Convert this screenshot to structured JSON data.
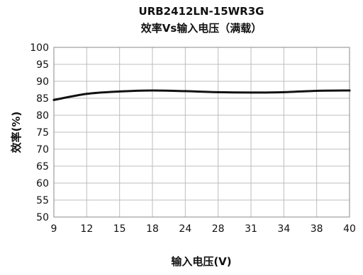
{
  "chart_data": {
    "type": "line",
    "title": "URB2412LN-15WR3G",
    "subtitle": "效率Vs输入电压（满载）",
    "xlabel": "输入电压(V)",
    "ylabel": "效率(%)",
    "categories": [
      "9",
      "12",
      "15",
      "18",
      "24",
      "28",
      "31",
      "34",
      "38",
      "40"
    ],
    "y_ticks": [
      50,
      55,
      60,
      65,
      70,
      75,
      80,
      85,
      90,
      95,
      100
    ],
    "ylim": [
      50,
      100
    ],
    "grid": true,
    "series": [
      {
        "values": [
          84.5,
          86.3,
          87.0,
          87.3,
          87.1,
          86.8,
          86.7,
          86.8,
          87.2,
          87.3
        ],
        "color": "#111111"
      }
    ]
  }
}
